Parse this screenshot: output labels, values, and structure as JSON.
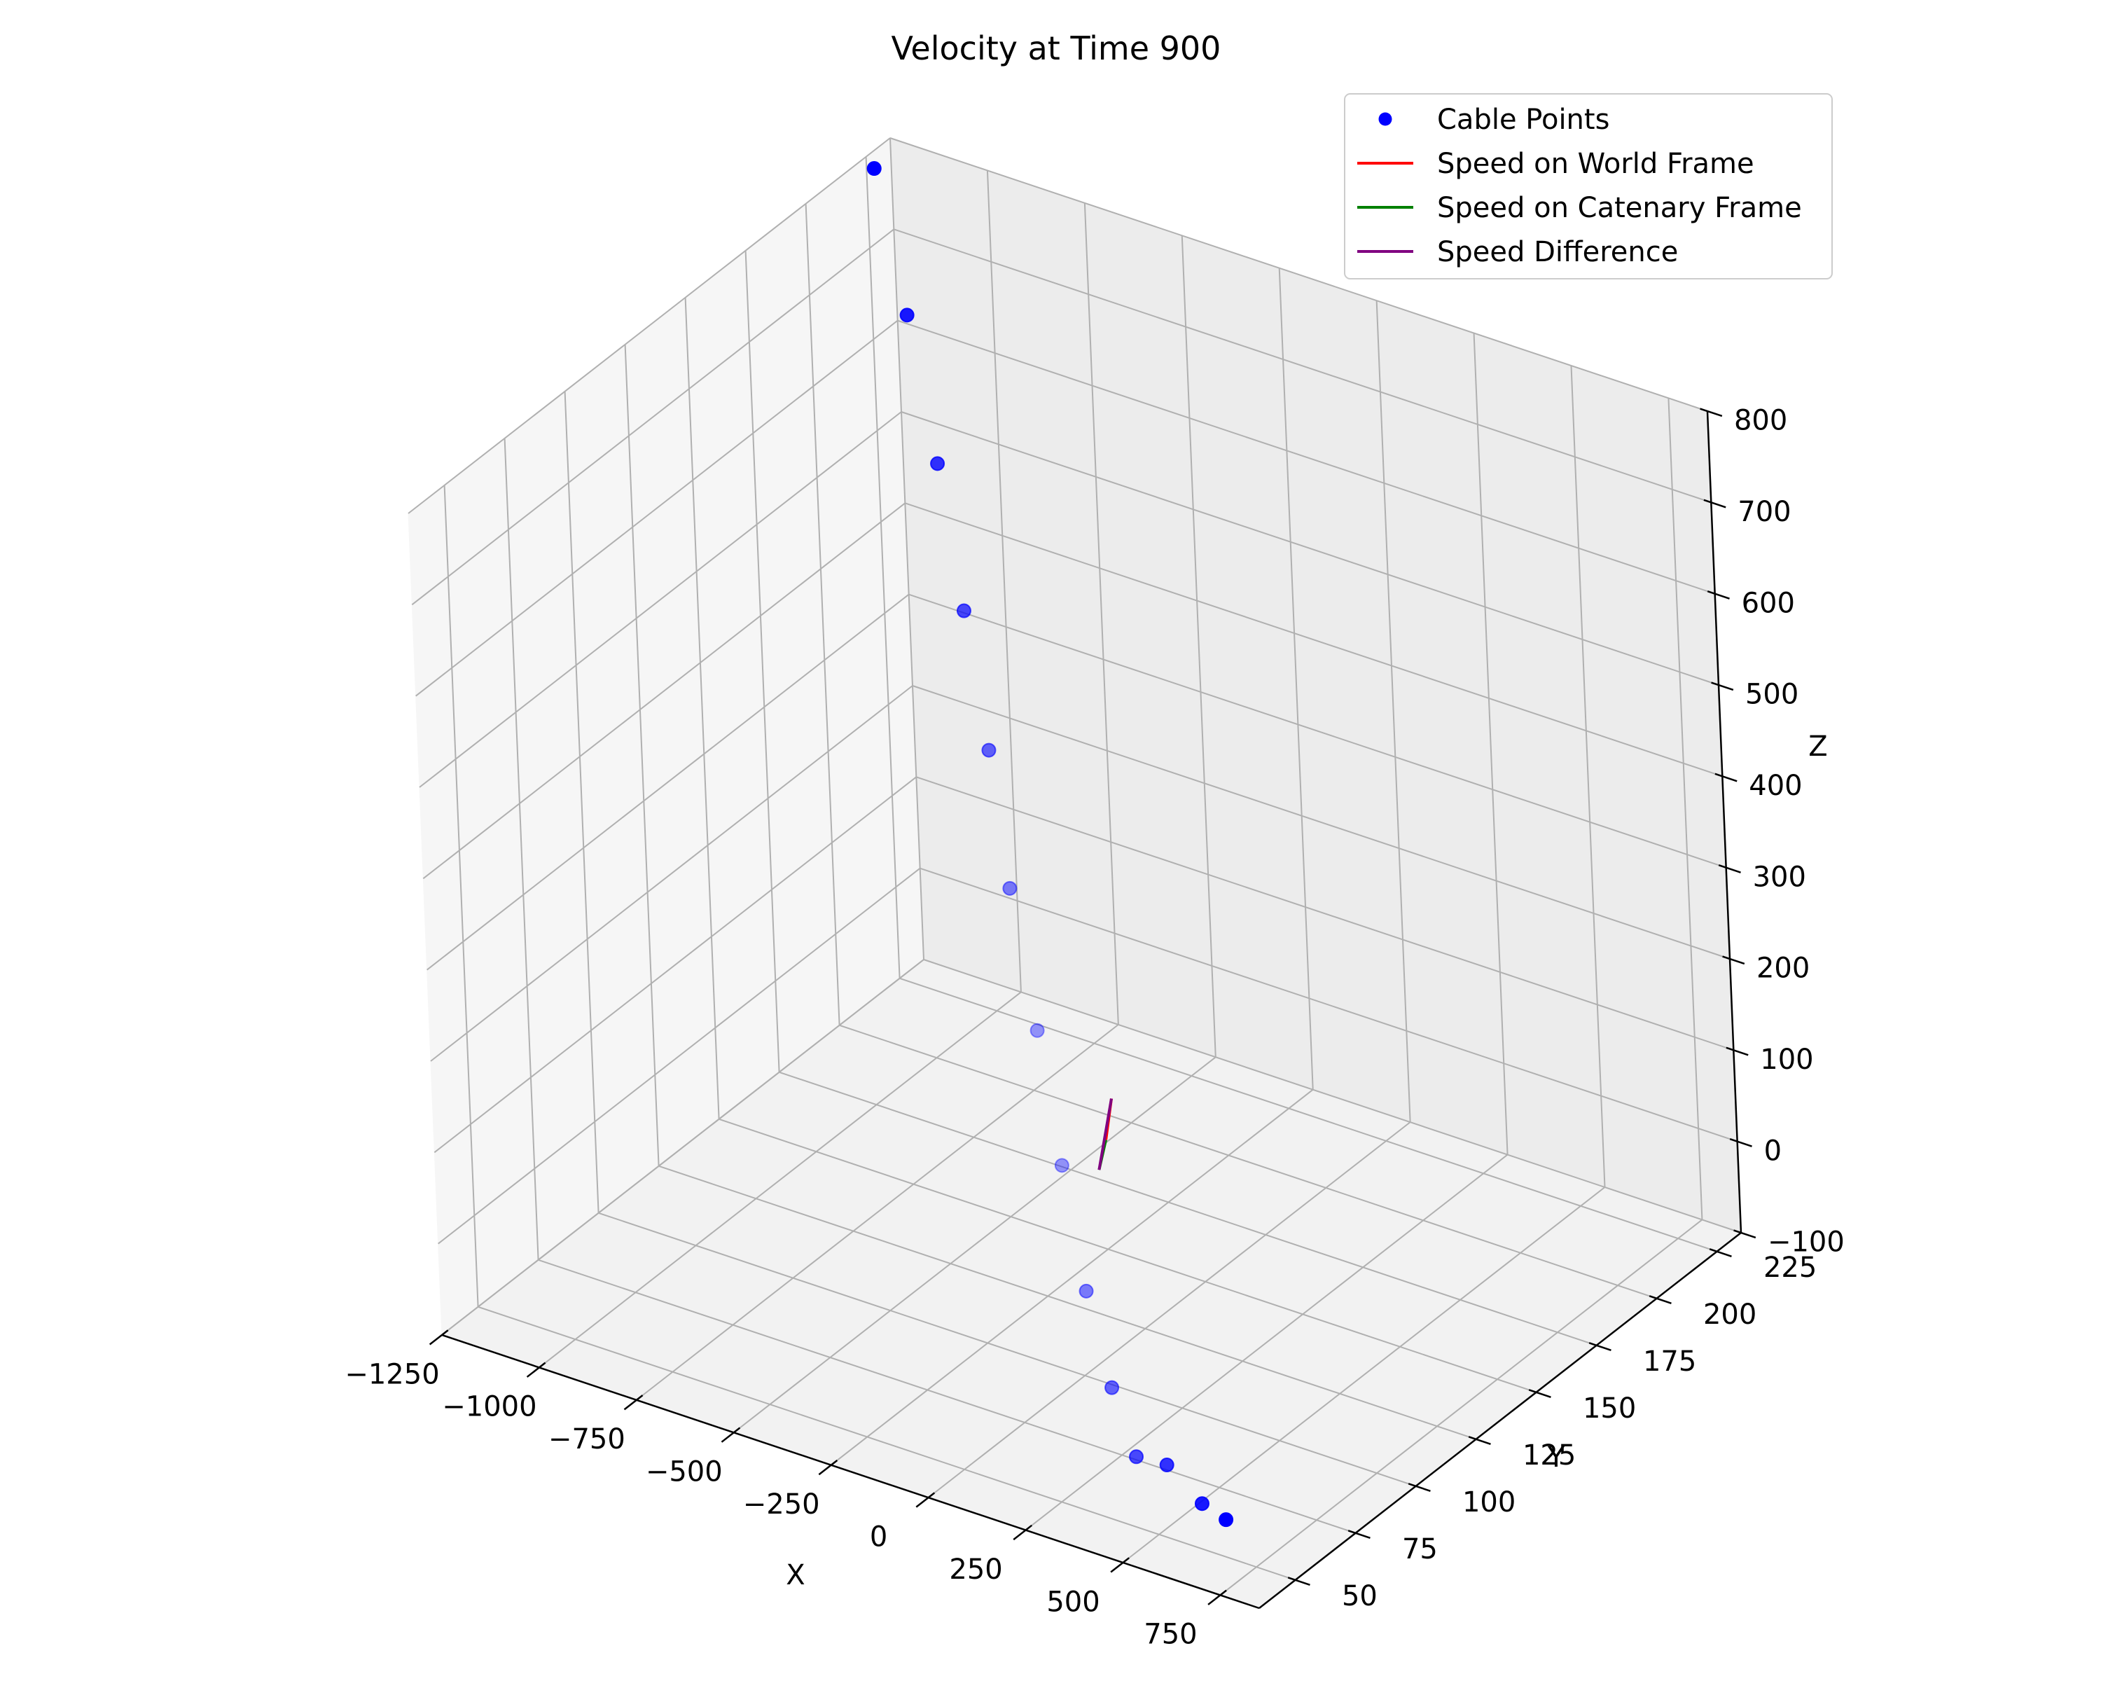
{
  "chart_data": {
    "type": "scatter",
    "projection": "3d",
    "title": "Velocity at Time 900",
    "xlabel": "X",
    "ylabel": "Y",
    "zlabel": "Z",
    "xlim": [
      -1250,
      850
    ],
    "ylim": [
      35,
      235
    ],
    "zlim": [
      -100,
      800
    ],
    "x_ticks": [
      -1250,
      -1000,
      -750,
      -500,
      -250,
      0,
      250,
      500,
      750
    ],
    "y_ticks": [
      50,
      75,
      100,
      125,
      150,
      175,
      200,
      225
    ],
    "z_ticks": [
      -100,
      0,
      100,
      200,
      300,
      400,
      500,
      600,
      700,
      800
    ],
    "x_tick_labels": [
      "−1250",
      "−1000",
      "−750",
      "−500",
      "−250",
      "0",
      "250",
      "500",
      "750"
    ],
    "y_tick_labels": [
      "50",
      "75",
      "100",
      "125",
      "150",
      "175",
      "200",
      "225"
    ],
    "z_tick_labels": [
      "−100",
      "0",
      "100",
      "200",
      "300",
      "400",
      "500",
      "600",
      "700",
      "800"
    ],
    "grid": true,
    "legend_placement": "top-right",
    "series": [
      {
        "name": "Cable Points",
        "kind": "scatter",
        "color": "#0000ff",
        "points": [
          {
            "x": -1230,
            "y": 225,
            "z": 790
          },
          {
            "x": -1050,
            "y": 208,
            "z": 690
          },
          {
            "x": -870,
            "y": 190,
            "z": 590
          },
          {
            "x": -700,
            "y": 172,
            "z": 490
          },
          {
            "x": -540,
            "y": 155,
            "z": 395
          },
          {
            "x": -390,
            "y": 138,
            "z": 300
          },
          {
            "x": -230,
            "y": 122,
            "z": 200
          },
          {
            "x": -70,
            "y": 105,
            "z": 110
          },
          {
            "x": 90,
            "y": 88,
            "z": 30
          },
          {
            "x": 250,
            "y": 72,
            "z": -20
          },
          {
            "x": 410,
            "y": 56,
            "z": -40
          },
          {
            "x": 560,
            "y": 45,
            "z": -5
          },
          {
            "x": 680,
            "y": 40,
            "z": -20
          },
          {
            "x": 760,
            "y": 37,
            "z": -20
          }
        ]
      },
      {
        "name": "Speed on World Frame",
        "kind": "line",
        "color": "#ff0000",
        "x": [
          -50,
          -70
        ],
        "y": [
          120,
          126
        ],
        "z": [
          110,
          140
        ]
      },
      {
        "name": "Speed on Catenary Frame",
        "kind": "line",
        "color": "#008000",
        "x": [
          -50,
          -32
        ],
        "y": [
          120,
          114
        ],
        "z": [
          110,
          92
        ]
      },
      {
        "name": "Speed Difference",
        "kind": "line",
        "color": "#800080",
        "x": [
          -70,
          -32
        ],
        "y": [
          126,
          114
        ],
        "z": [
          140,
          92
        ]
      }
    ]
  }
}
